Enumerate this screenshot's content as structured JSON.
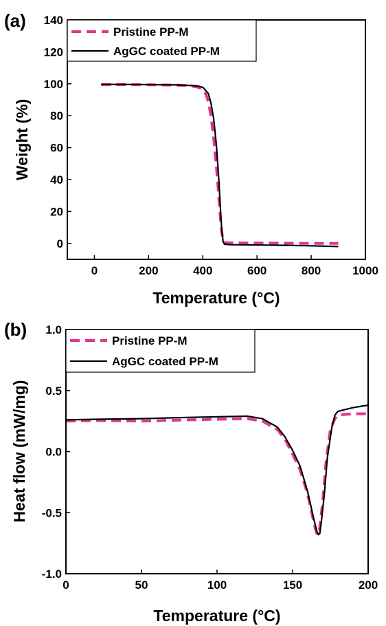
{
  "chart_data": [
    {
      "panel_label": "(a)",
      "type": "line",
      "xlabel": "Temperature (°C)",
      "ylabel": "Weight (%)",
      "xlim": [
        -100,
        1000
      ],
      "ylim": [
        -10,
        140
      ],
      "xticks": [
        0,
        200,
        400,
        600,
        800,
        1000
      ],
      "yticks": [
        0,
        20,
        40,
        60,
        80,
        100,
        120,
        140
      ],
      "legend_position": "top-left",
      "grid": false,
      "series": [
        {
          "name": "Pristine PP-M",
          "color": "#e0368f",
          "style": "dashed",
          "x": [
            25,
            100,
            200,
            300,
            350,
            380,
            400,
            410,
            420,
            430,
            440,
            450,
            455,
            460,
            465,
            470,
            475,
            480,
            500,
            600,
            700,
            800,
            900
          ],
          "y": [
            99.5,
            99.5,
            99.4,
            99.2,
            98.8,
            98,
            96.5,
            94,
            89,
            80,
            66,
            48,
            38,
            27,
            16,
            7,
            2,
            0.5,
            0.3,
            0.2,
            0.1,
            0,
            0
          ]
        },
        {
          "name": "AgGC coated PP-M",
          "color": "#000000",
          "style": "solid",
          "x": [
            25,
            100,
            200,
            300,
            350,
            380,
            400,
            420,
            430,
            440,
            450,
            460,
            465,
            470,
            475,
            480,
            500,
            600,
            700,
            800,
            900
          ],
          "y": [
            99.6,
            99.6,
            99.5,
            99.3,
            99,
            98.6,
            97.8,
            94,
            88,
            78,
            62,
            38,
            22,
            8,
            1,
            -0.5,
            -0.8,
            -1,
            -1.2,
            -1.5,
            -2
          ]
        }
      ]
    },
    {
      "panel_label": "(b)",
      "type": "line",
      "xlabel": "Temperature (°C)",
      "ylabel": "Heat flow (mW/mg)",
      "xlim": [
        0,
        200
      ],
      "ylim": [
        -1.0,
        1.0
      ],
      "xticks": [
        0,
        50,
        100,
        150,
        200
      ],
      "yticks": [
        "-1.0",
        "-0.5",
        "0.0",
        "0.5",
        "1.0"
      ],
      "legend_position": "top-left",
      "grid": false,
      "series": [
        {
          "name": "Pristine PP-M",
          "color": "#e0368f",
          "style": "dashed",
          "x": [
            0,
            20,
            50,
            80,
            100,
            120,
            130,
            140,
            145,
            150,
            155,
            160,
            163,
            165,
            166,
            167,
            168,
            170,
            172,
            175,
            178,
            180,
            190,
            200
          ],
          "y": [
            0.25,
            0.255,
            0.25,
            0.26,
            0.265,
            0.27,
            0.25,
            0.18,
            0.1,
            -0.02,
            -0.15,
            -0.35,
            -0.52,
            -0.63,
            -0.67,
            -0.68,
            -0.62,
            -0.4,
            -0.1,
            0.18,
            0.27,
            0.3,
            0.31,
            0.31
          ]
        },
        {
          "name": "AgGC coated PP-M",
          "color": "#000000",
          "style": "solid",
          "x": [
            0,
            20,
            50,
            80,
            100,
            120,
            130,
            140,
            145,
            150,
            155,
            160,
            164,
            166,
            167,
            168,
            169,
            171,
            173,
            176,
            178,
            180,
            190,
            200
          ],
          "y": [
            0.26,
            0.265,
            0.27,
            0.28,
            0.285,
            0.29,
            0.27,
            0.2,
            0.12,
            0.01,
            -0.12,
            -0.33,
            -0.55,
            -0.65,
            -0.68,
            -0.67,
            -0.58,
            -0.35,
            -0.05,
            0.2,
            0.3,
            0.33,
            0.36,
            0.38
          ]
        }
      ]
    }
  ]
}
